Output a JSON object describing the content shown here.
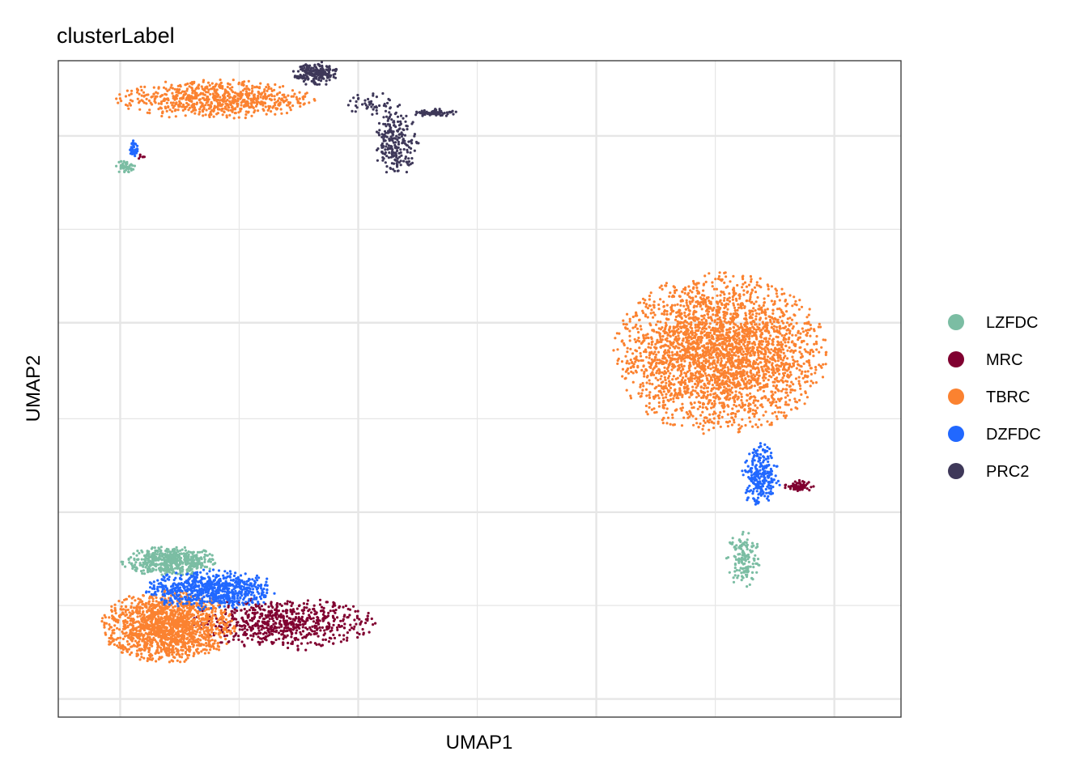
{
  "chart_data": {
    "type": "scatter",
    "title": "clusterLabel",
    "xlabel": "UMAP1",
    "ylabel": "UMAP2",
    "xlim": [
      -6.3,
      11.4
    ],
    "ylim": [
      -9.7,
      15.6
    ],
    "grid": true,
    "legend_position": "right",
    "series": [
      {
        "name": "LZFDC",
        "color": "#7BBDA3",
        "clusters": [
          {
            "cx": -3.95,
            "cy": -3.7,
            "rx": 1.0,
            "ry": 0.55,
            "n": 520
          },
          {
            "cx": 8.1,
            "cy": -3.6,
            "rx": 0.35,
            "ry": 1.1,
            "n": 150
          },
          {
            "cx": -4.9,
            "cy": 11.5,
            "rx": 0.2,
            "ry": 0.25,
            "n": 40
          }
        ]
      },
      {
        "name": "MRC",
        "color": "#800030",
        "clusters": [
          {
            "cx": -1.6,
            "cy": -6.1,
            "rx": 1.9,
            "ry": 1.0,
            "n": 650
          },
          {
            "cx": 9.25,
            "cy": -0.8,
            "rx": 0.3,
            "ry": 0.22,
            "n": 60
          },
          {
            "cx": -4.55,
            "cy": 11.9,
            "rx": 0.08,
            "ry": 0.1,
            "n": 6
          }
        ]
      },
      {
        "name": "TBRC",
        "color": "#FB8230",
        "clusters": [
          {
            "cx": 7.6,
            "cy": 4.3,
            "rx": 2.15,
            "ry": 3.0,
            "n": 2900
          },
          {
            "cx": -4.0,
            "cy": -6.2,
            "rx": 1.35,
            "ry": 1.35,
            "n": 1500
          },
          {
            "cx": -3.0,
            "cy": 14.1,
            "rx": 2.0,
            "ry": 0.75,
            "n": 720
          }
        ]
      },
      {
        "name": "DZFDC",
        "color": "#2168FF",
        "clusters": [
          {
            "cx": -3.1,
            "cy": -4.8,
            "rx": 1.35,
            "ry": 0.75,
            "n": 720
          },
          {
            "cx": 8.45,
            "cy": -0.4,
            "rx": 0.4,
            "ry": 1.2,
            "n": 260
          },
          {
            "cx": -4.7,
            "cy": 12.2,
            "rx": 0.1,
            "ry": 0.35,
            "n": 40
          }
        ]
      },
      {
        "name": "PRC2",
        "color": "#3E3859",
        "clusters": [
          {
            "cx": -0.9,
            "cy": 15.1,
            "rx": 0.45,
            "ry": 0.45,
            "n": 200
          },
          {
            "cx": 0.8,
            "cy": 12.4,
            "rx": 0.45,
            "ry": 1.2,
            "n": 220
          },
          {
            "cx": 1.6,
            "cy": 13.6,
            "rx": 0.45,
            "ry": 0.15,
            "n": 70
          },
          {
            "cx": 0.3,
            "cy": 13.9,
            "rx": 0.55,
            "ry": 0.45,
            "n": 50
          }
        ]
      }
    ]
  }
}
